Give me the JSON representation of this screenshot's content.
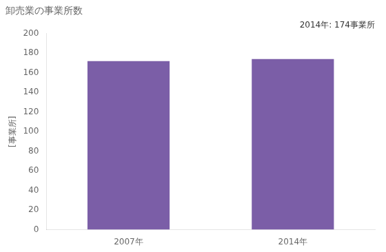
{
  "chart_data": {
    "type": "bar",
    "title": "卸売業の事業所数",
    "ylabel": "[事業所]",
    "categories": [
      "2007年",
      "2014年"
    ],
    "values": [
      172,
      174
    ],
    "color": "#7B5EA7",
    "ylim": [
      0,
      200
    ],
    "yticks": [
      0,
      20,
      40,
      60,
      80,
      100,
      120,
      140,
      160,
      180,
      200
    ],
    "annotation": "2014年: 174事業所",
    "grid": false
  }
}
